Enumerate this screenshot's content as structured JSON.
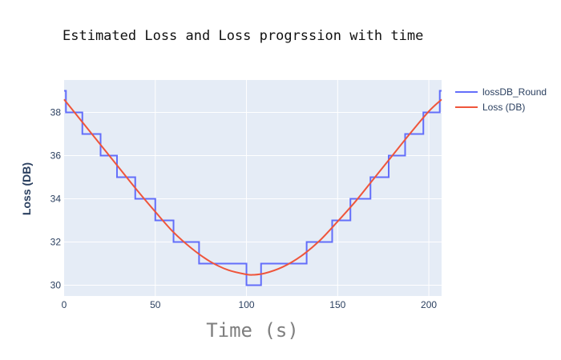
{
  "chart_data": {
    "type": "line",
    "title": "Estimated Loss and Loss progrssion with time",
    "xlabel": "Time (s)",
    "ylabel": "Loss (DB)",
    "xlim": [
      0,
      207
    ],
    "ylim": [
      29.5,
      39.5
    ],
    "x_ticks": [
      0,
      50,
      100,
      150,
      200
    ],
    "y_ticks": [
      30,
      32,
      34,
      36,
      38
    ],
    "grid": true,
    "legend_position": "top-right",
    "background_color": "#e5ecf6",
    "series": [
      {
        "name": "lossDB_Round",
        "color": "#636efa",
        "shape": "step",
        "x": [
          0,
          1,
          10,
          20,
          29,
          39,
          50,
          60,
          74,
          100,
          108,
          133,
          147,
          157,
          168,
          178,
          187,
          197,
          206,
          207
        ],
        "y": [
          39,
          38,
          37,
          36,
          35,
          34,
          33,
          32,
          31,
          30,
          31,
          32,
          33,
          34,
          35,
          36,
          37,
          38,
          39,
          39
        ]
      },
      {
        "name": "Loss (DB)",
        "color": "#ef553b",
        "shape": "line",
        "x": [
          0,
          10,
          20,
          30,
          40,
          50,
          60,
          70,
          80,
          90,
          100,
          103.5,
          110,
          120,
          130,
          140,
          150,
          160,
          170,
          180,
          190,
          200,
          207
        ],
        "y": [
          38.6,
          37.55,
          36.5,
          35.45,
          34.4,
          33.4,
          32.45,
          31.7,
          31.1,
          30.7,
          30.5,
          30.48,
          30.55,
          30.85,
          31.35,
          32.05,
          32.95,
          33.9,
          34.95,
          36.0,
          37.05,
          38.05,
          38.6
        ]
      }
    ]
  }
}
